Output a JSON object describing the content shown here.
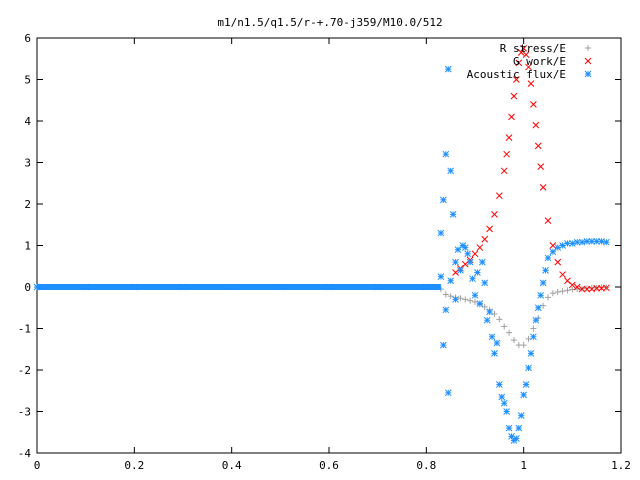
{
  "chart_data": {
    "type": "scatter",
    "title": "m1/n1.5/q1.5/r-+.70-j359/M10.0/512",
    "xlabel": "",
    "ylabel": "",
    "xlim": [
      0,
      1.2
    ],
    "ylim": [
      -4,
      6
    ],
    "x_ticks": [
      "0",
      "0.2",
      "0.4",
      "0.6",
      "0.8",
      "1",
      "1.2"
    ],
    "y_ticks": [
      "-4",
      "-3",
      "-2",
      "-1",
      "0",
      "1",
      "2",
      "3",
      "4",
      "5",
      "6"
    ],
    "grid": false,
    "legend_position": "top-right",
    "series": [
      {
        "name": "R stress/E",
        "marker": "plus",
        "color": "#a0a0a0",
        "x": [
          0.83,
          0.84,
          0.85,
          0.86,
          0.87,
          0.88,
          0.89,
          0.9,
          0.91,
          0.92,
          0.93,
          0.94,
          0.95,
          0.96,
          0.97,
          0.98,
          0.99,
          1.0,
          1.01,
          1.02,
          1.03,
          1.04,
          1.05,
          1.06,
          1.07,
          1.08,
          1.09,
          1.1,
          1.11,
          1.12,
          1.13,
          1.14,
          1.15,
          1.16,
          1.17
        ],
        "y": [
          -0.05,
          -0.18,
          -0.22,
          -0.25,
          -0.27,
          -0.3,
          -0.33,
          -0.36,
          -0.42,
          -0.48,
          -0.55,
          -0.65,
          -0.78,
          -0.95,
          -1.1,
          -1.28,
          -1.4,
          -1.4,
          -1.25,
          -1.0,
          -0.75,
          -0.45,
          -0.25,
          -0.15,
          -0.12,
          -0.1,
          -0.08,
          -0.06,
          -0.05,
          -0.04,
          -0.03,
          -0.02,
          -0.02,
          -0.01,
          -0.01
        ]
      },
      {
        "name": "G work/E",
        "marker": "cross",
        "color": "#ff0000",
        "x": [
          0.86,
          0.87,
          0.88,
          0.89,
          0.9,
          0.91,
          0.92,
          0.93,
          0.94,
          0.95,
          0.96,
          0.965,
          0.97,
          0.975,
          0.98,
          0.985,
          0.99,
          0.995,
          1.0,
          1.005,
          1.01,
          1.015,
          1.02,
          1.025,
          1.03,
          1.035,
          1.04,
          1.05,
          1.06,
          1.07,
          1.08,
          1.09,
          1.1,
          1.11,
          1.12,
          1.13,
          1.14,
          1.15,
          1.16,
          1.17
        ],
        "y": [
          0.35,
          0.45,
          0.55,
          0.65,
          0.8,
          0.95,
          1.15,
          1.4,
          1.75,
          2.2,
          2.8,
          3.2,
          3.6,
          4.1,
          4.6,
          5.0,
          5.4,
          5.65,
          5.75,
          5.6,
          5.3,
          4.9,
          4.4,
          3.9,
          3.4,
          2.9,
          2.4,
          1.6,
          1.0,
          0.6,
          0.3,
          0.15,
          0.05,
          0.0,
          -0.05,
          -0.05,
          -0.05,
          -0.03,
          -0.03,
          -0.02
        ]
      },
      {
        "name": "Acoustic flux/E",
        "marker": "star",
        "color": "#1e8fff",
        "x": [
          0.0,
          0.1,
          0.2,
          0.3,
          0.4,
          0.5,
          0.6,
          0.7,
          0.8,
          0.83,
          0.83,
          0.835,
          0.835,
          0.84,
          0.84,
          0.845,
          0.845,
          0.85,
          0.85,
          0.855,
          0.86,
          0.86,
          0.865,
          0.87,
          0.875,
          0.88,
          0.885,
          0.89,
          0.895,
          0.9,
          0.905,
          0.91,
          0.915,
          0.92,
          0.925,
          0.93,
          0.935,
          0.94,
          0.945,
          0.95,
          0.955,
          0.96,
          0.965,
          0.97,
          0.975,
          0.98,
          0.985,
          0.99,
          0.995,
          1.0,
          1.005,
          1.01,
          1.015,
          1.02,
          1.025,
          1.03,
          1.035,
          1.04,
          1.045,
          1.05,
          1.06,
          1.07,
          1.08,
          1.09,
          1.1,
          1.11,
          1.12,
          1.13,
          1.14,
          1.15,
          1.16,
          1.17
        ],
        "y": [
          0,
          0,
          0,
          0,
          0,
          0,
          0,
          0,
          0,
          1.3,
          0.25,
          2.1,
          -1.4,
          3.2,
          -0.55,
          5.25,
          -2.55,
          2.8,
          0.15,
          1.75,
          0.6,
          -0.3,
          0.9,
          0.4,
          1.0,
          0.95,
          0.8,
          0.6,
          0.2,
          -0.2,
          0.35,
          -0.4,
          0.6,
          0.1,
          -0.8,
          -0.6,
          -1.2,
          -1.6,
          -1.35,
          -2.35,
          -2.65,
          -2.8,
          -3.0,
          -3.4,
          -3.6,
          -3.7,
          -3.65,
          -3.4,
          -3.1,
          -2.6,
          -2.35,
          -1.95,
          -1.6,
          -1.2,
          -0.8,
          -0.5,
          -0.2,
          0.1,
          0.4,
          0.7,
          0.85,
          0.95,
          1.0,
          1.05,
          1.05,
          1.08,
          1.08,
          1.1,
          1.1,
          1.1,
          1.1,
          1.08
        ]
      }
    ]
  }
}
